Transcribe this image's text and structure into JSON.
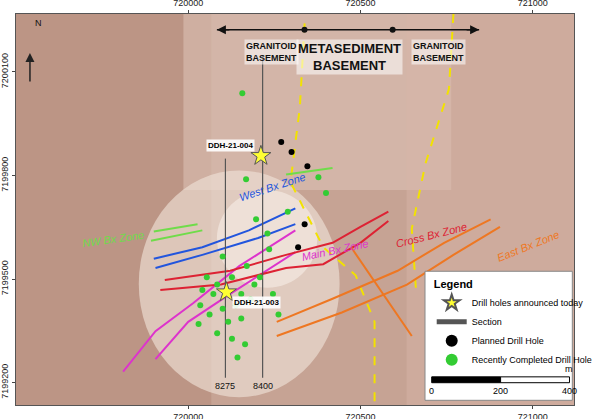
{
  "chart_data": {
    "type": "map",
    "xlim": [
      719500,
      721120
    ],
    "ylim": [
      7199135,
      7200268
    ],
    "xticks": [
      720000,
      720500,
      721000
    ],
    "yticks": [
      7199200,
      7199500,
      7199800,
      7200100
    ],
    "grid": false,
    "legend": "lower right",
    "legend_title": "Legend",
    "north_label": "N",
    "basement": [
      "GRANITOID BASEMENT",
      "METASEDIMENT BASEMENT",
      "GRANITOID BASEMENT"
    ],
    "contacts": {
      "color": "#f2e200",
      "line_style": "dash",
      "lines": [
        {
          "x": [
            720338,
            720324,
            720297,
            720392,
            720486,
            720541,
            720541
          ],
          "y": [
            7200241,
            7199997,
            7199781,
            7199592,
            7199511,
            7199376,
            7199135
          ]
        },
        {
          "x": [
            720770,
            720757,
            720689,
            720649,
            720662
          ],
          "y": [
            7200268,
            7200051,
            7199835,
            7199646,
            7199457
          ]
        }
      ]
    },
    "zones": [
      {
        "name": "NW Bx Zone",
        "color": "#6fdc4a",
        "lines": [
          {
            "x": [
              719900,
              720027
            ],
            "y": [
              7199638,
              7199659
            ]
          },
          {
            "x": [
              719892,
              720041
            ],
            "y": [
              7199611,
              7199641
            ]
          },
          {
            "x": [
              720284,
              720419
            ],
            "y": [
              7199803,
              7199822
            ]
          }
        ]
      },
      {
        "name": "West Bx Zone",
        "color": "#2255dd",
        "lines": [
          {
            "x": [
              719900,
              720041,
              720176,
              720311
            ],
            "y": [
              7199559,
              7199592,
              7199641,
              7199705
            ]
          },
          {
            "x": [
              719905,
              720041,
              720203,
              720311
            ],
            "y": [
              7199532,
              7199570,
              7199619,
              7199659
            ]
          }
        ]
      },
      {
        "name": "Main Bx Zone",
        "color": "#dd33cc",
        "lines": [
          {
            "x": [
              719811,
              719905,
              720014,
              720149,
              720311
            ],
            "y": [
              7199232,
              7199349,
              7199430,
              7199538,
              7199641
            ]
          },
          {
            "x": [
              719905,
              720000,
              720122,
              720311
            ],
            "y": [
              7199268,
              7199376,
              7199457,
              7199578
            ]
          }
        ]
      },
      {
        "name": "Cross Bx Zone",
        "color": "#dd2233",
        "lines": [
          {
            "x": [
              719919,
              720095,
              720284,
              720392,
              720500,
              720581
            ],
            "y": [
              7199468,
              7199484,
              7199532,
              7199543,
              7199605,
              7199668
            ]
          },
          {
            "x": [
              719932,
              720122,
              720284,
              720419,
              720500,
              720581
            ],
            "y": [
              7199497,
              7199524,
              7199570,
              7199605,
              7199651,
              7199695
            ]
          }
        ]
      },
      {
        "name": "East Bx Zone",
        "color": "#ee7722",
        "lines": [
          {
            "x": [
              720257,
              720446,
              720635,
              720770,
              720905
            ],
            "y": [
              7199335,
              7199403,
              7199484,
              7199570,
              7199651
            ]
          },
          {
            "x": [
              720257,
              720419,
              720608,
              720743,
              720878
            ],
            "y": [
              7199376,
              7199443,
              7199524,
              7199605,
              7199673
            ]
          },
          {
            "x": [
              720473,
              720649
            ],
            "y": [
              7199592,
              7199335
            ]
          }
        ]
      }
    ],
    "sections": {
      "name": "Section",
      "color": "#555555",
      "lines": [
        {
          "label": "8275",
          "x": [
            720108,
            720108
          ],
          "y": [
            7199849,
            7199214
          ]
        },
        {
          "label": "8400",
          "x": [
            720216,
            720216
          ],
          "y": [
            7200146,
            7199214
          ]
        }
      ]
    },
    "series": [
      {
        "name": "Drill holes announced today",
        "marker": "star",
        "color": "#ffff33",
        "x": [
          720211,
          720111
        ],
        "y": [
          7199857,
          7199462
        ],
        "labels": [
          "DDH-21-004",
          "DDH-21-003"
        ]
      },
      {
        "name": "Planned Drill Hole",
        "marker": "circle",
        "color": "#000000",
        "x": [
          720270,
          720300,
          720346,
          720338,
          720319
        ],
        "y": [
          7199897,
          7199868,
          7199827,
          7199659,
          7199592
        ]
      },
      {
        "name": "Recently Completed Drill Hole",
        "marker": "circle",
        "color": "#33cc33",
        "x": [
          720157,
          720168,
          720197,
          720378,
          720400,
          720170,
          720054,
          720041,
          720073,
          720084,
          720127,
          720154,
          720138,
          720181,
          720192,
          720100,
          720062,
          720035,
          720030,
          720084,
          720116,
          720154,
          720127,
          720165,
          720143,
          720208,
          720246,
          720262,
          720235,
          720289,
          720100,
          720230
        ],
        "y": [
          7200038,
          7199789,
          7199673,
          7199795,
          7199749,
          7199538,
          7199505,
          7199468,
          7199457,
          7199484,
          7199505,
          7199457,
          7199424,
          7199441,
          7199484,
          7199414,
          7199397,
          7199424,
          7199370,
          7199343,
          7199376,
          7199386,
          7199327,
          7199311,
          7199273,
          7199505,
          7199457,
          7199397,
          7199586,
          7199695,
          7199565,
          7199632
        ]
      }
    ],
    "scale_bar": {
      "unit": "m",
      "ticks": [
        0,
        200,
        400
      ]
    }
  }
}
